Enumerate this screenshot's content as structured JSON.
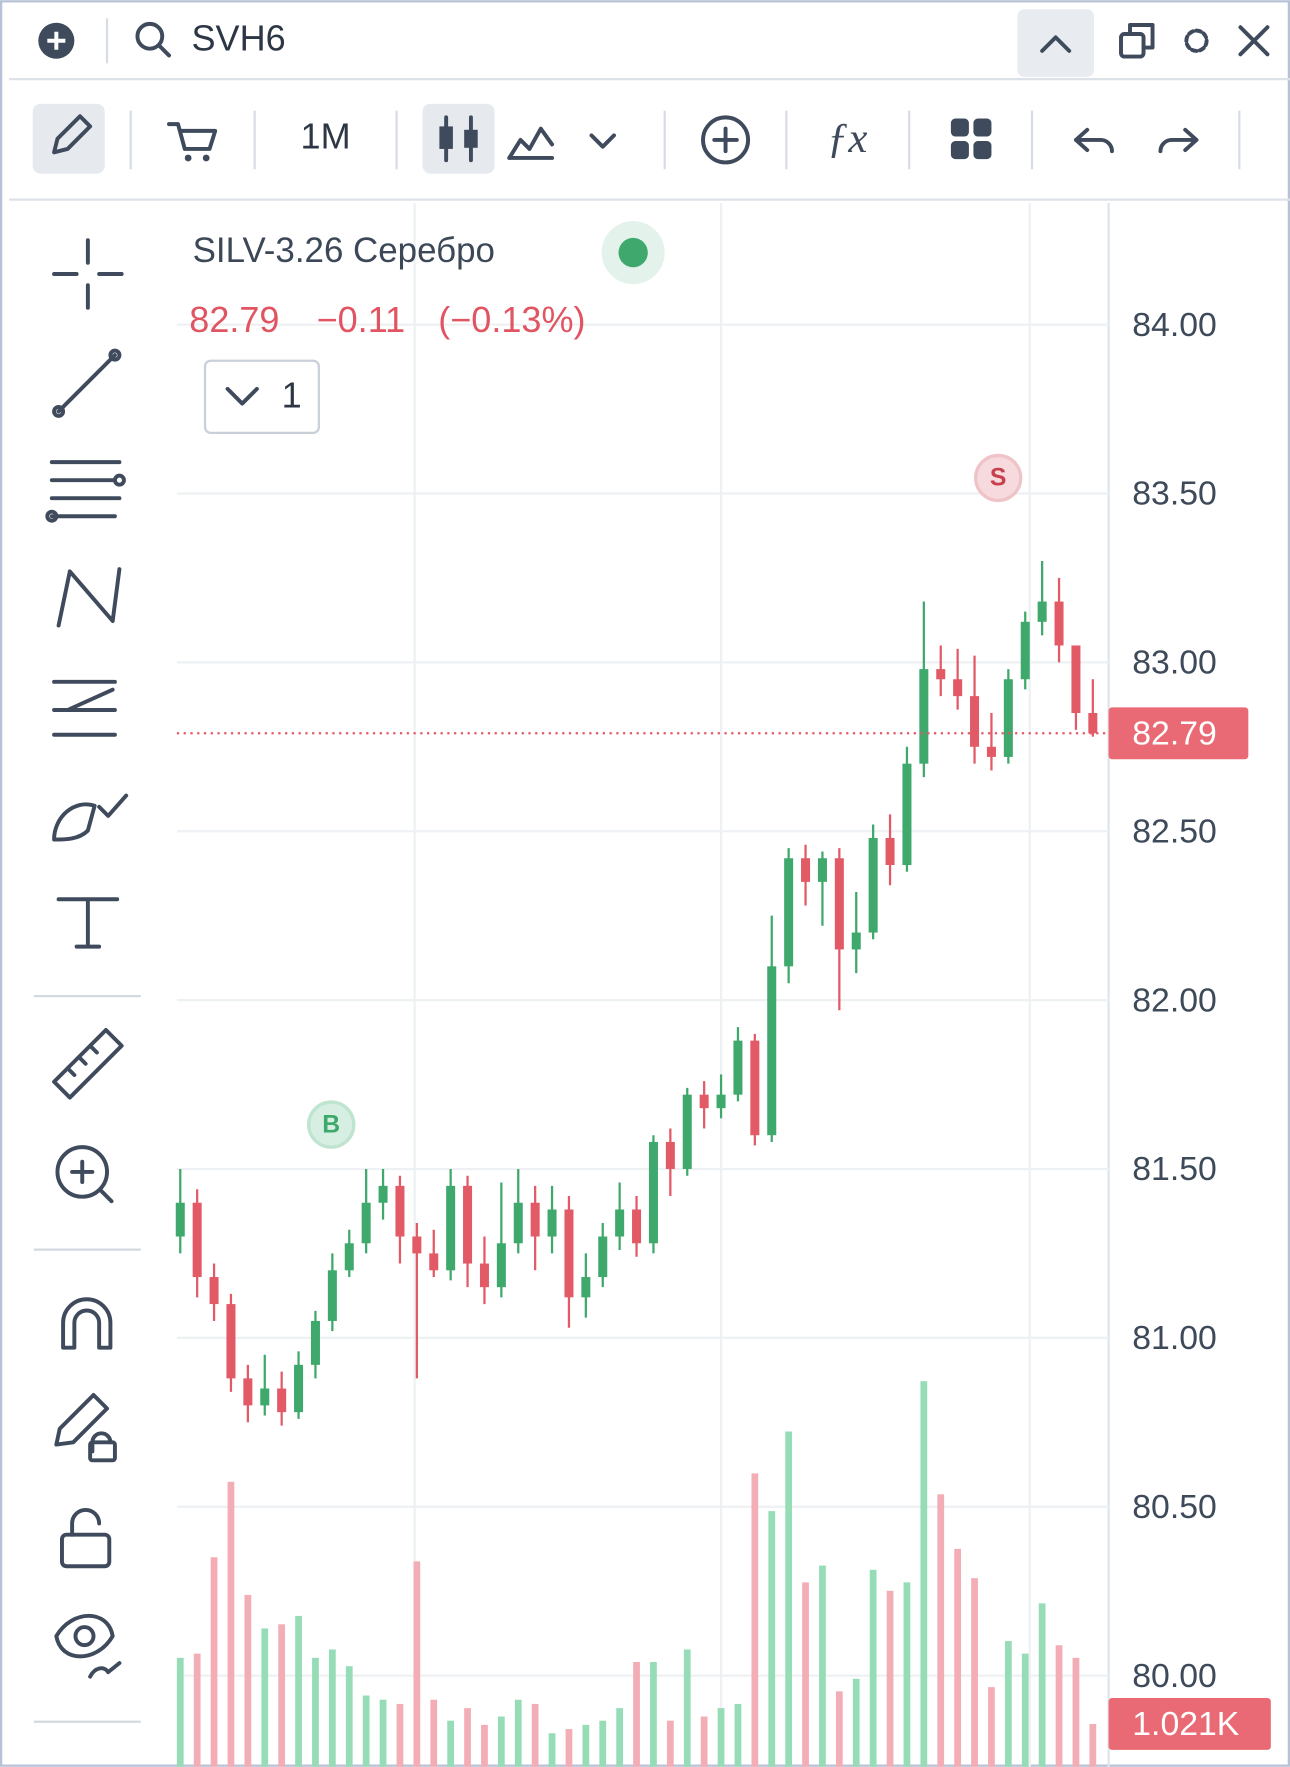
{
  "top_bar": {
    "search": "SVH6"
  },
  "toolbar": {
    "interval": "1M"
  },
  "legend": {
    "instrument": "SILV-3.26 Серебро",
    "last": "82.79",
    "change": "−0.11",
    "change_pct": "(−0.13%)",
    "layers": "1"
  },
  "markers": [
    {
      "label": "B"
    },
    {
      "label": "S"
    }
  ],
  "chart_data": {
    "type": "candlestick",
    "open": [
      81.3,
      81.4,
      81.18,
      81.1,
      80.88,
      80.8,
      80.85,
      80.78,
      80.92,
      81.05,
      81.2,
      81.28,
      81.4,
      81.45,
      81.3,
      81.25,
      81.2,
      81.45,
      81.22,
      81.15,
      81.28,
      81.4,
      81.3,
      81.38,
      81.12,
      81.18,
      81.3,
      81.38,
      81.28,
      81.58,
      81.5,
      81.72,
      81.68,
      81.72,
      81.88,
      81.6,
      82.1,
      82.42,
      82.35,
      82.42,
      82.15,
      82.2,
      82.48,
      82.4,
      82.7,
      82.98,
      82.95,
      82.9,
      82.75,
      82.72,
      82.95,
      83.12,
      83.18,
      83.05,
      82.85
    ],
    "high": [
      81.5,
      81.44,
      81.22,
      81.13,
      80.92,
      80.95,
      80.9,
      80.96,
      81.08,
      81.25,
      81.32,
      81.5,
      81.5,
      81.48,
      81.34,
      81.32,
      81.5,
      81.48,
      81.3,
      81.46,
      81.5,
      81.45,
      81.45,
      81.42,
      81.25,
      81.34,
      81.46,
      81.42,
      81.6,
      81.62,
      81.74,
      81.76,
      81.78,
      81.92,
      81.9,
      82.25,
      82.45,
      82.46,
      82.44,
      82.45,
      82.32,
      82.52,
      82.55,
      82.75,
      83.18,
      83.05,
      83.04,
      83.02,
      82.85,
      82.98,
      83.15,
      83.3,
      83.25,
      83.05,
      82.95
    ],
    "low": [
      81.25,
      81.12,
      81.05,
      80.84,
      80.75,
      80.77,
      80.74,
      80.76,
      80.88,
      81.02,
      81.18,
      81.25,
      81.35,
      81.22,
      80.88,
      81.18,
      81.17,
      81.15,
      81.1,
      81.12,
      81.25,
      81.2,
      81.25,
      81.03,
      81.06,
      81.15,
      81.26,
      81.24,
      81.25,
      81.42,
      81.48,
      81.62,
      81.65,
      81.7,
      81.57,
      81.58,
      82.05,
      82.28,
      82.22,
      81.97,
      82.08,
      82.18,
      82.34,
      82.38,
      82.66,
      82.9,
      82.86,
      82.7,
      82.68,
      82.7,
      82.92,
      83.08,
      83.0,
      82.8,
      82.78
    ],
    "close": [
      81.4,
      81.18,
      81.1,
      80.88,
      80.8,
      80.85,
      80.78,
      80.92,
      81.05,
      81.2,
      81.28,
      81.4,
      81.45,
      81.3,
      81.25,
      81.2,
      81.45,
      81.22,
      81.15,
      81.28,
      81.4,
      81.3,
      81.38,
      81.12,
      81.18,
      81.3,
      81.38,
      81.28,
      81.58,
      81.5,
      81.72,
      81.68,
      81.72,
      81.88,
      81.6,
      82.1,
      82.42,
      82.35,
      82.42,
      82.15,
      82.2,
      82.48,
      82.4,
      82.7,
      82.98,
      82.95,
      82.9,
      82.75,
      82.72,
      82.95,
      83.12,
      83.18,
      83.05,
      82.85,
      82.79
    ],
    "volume": [
      2600,
      2700,
      5000,
      6800,
      4100,
      3300,
      3400,
      3600,
      2600,
      2800,
      2400,
      1700,
      1600,
      1500,
      4900,
      1600,
      1100,
      1400,
      1000,
      1200,
      1600,
      1500,
      800,
      900,
      1000,
      1100,
      1400,
      2500,
      2500,
      1100,
      2800,
      1200,
      1400,
      1500,
      7000,
      6100,
      8000,
      4400,
      4800,
      1800,
      2100,
      4700,
      4200,
      4400,
      9200,
      6500,
      5200,
      4500,
      1900,
      3000,
      2700,
      3900,
      2900,
      2600,
      1021
    ],
    "volume_badge": "1.021K",
    "up_color": "#3fa86c",
    "down_color": "#e25a66",
    "up_volume_color": "#96dcb6",
    "down_volume_color": "#f3adb5",
    "ylim": [
      79.73,
      84.36
    ],
    "vlim": [
      0,
      10000
    ],
    "yticks": [
      {
        "value": 80,
        "label": "80.00"
      },
      {
        "value": 80.5,
        "label": "80.50"
      },
      {
        "value": 81,
        "label": "81.00"
      },
      {
        "value": 81.5,
        "label": "81.50"
      },
      {
        "value": 82,
        "label": "82.00"
      },
      {
        "value": 82.5,
        "label": "82.50"
      },
      {
        "value": 83,
        "label": "83.00"
      },
      {
        "value": 83.5,
        "label": "83.50"
      },
      {
        "value": 84,
        "label": "84.00"
      }
    ],
    "grid": true
  }
}
